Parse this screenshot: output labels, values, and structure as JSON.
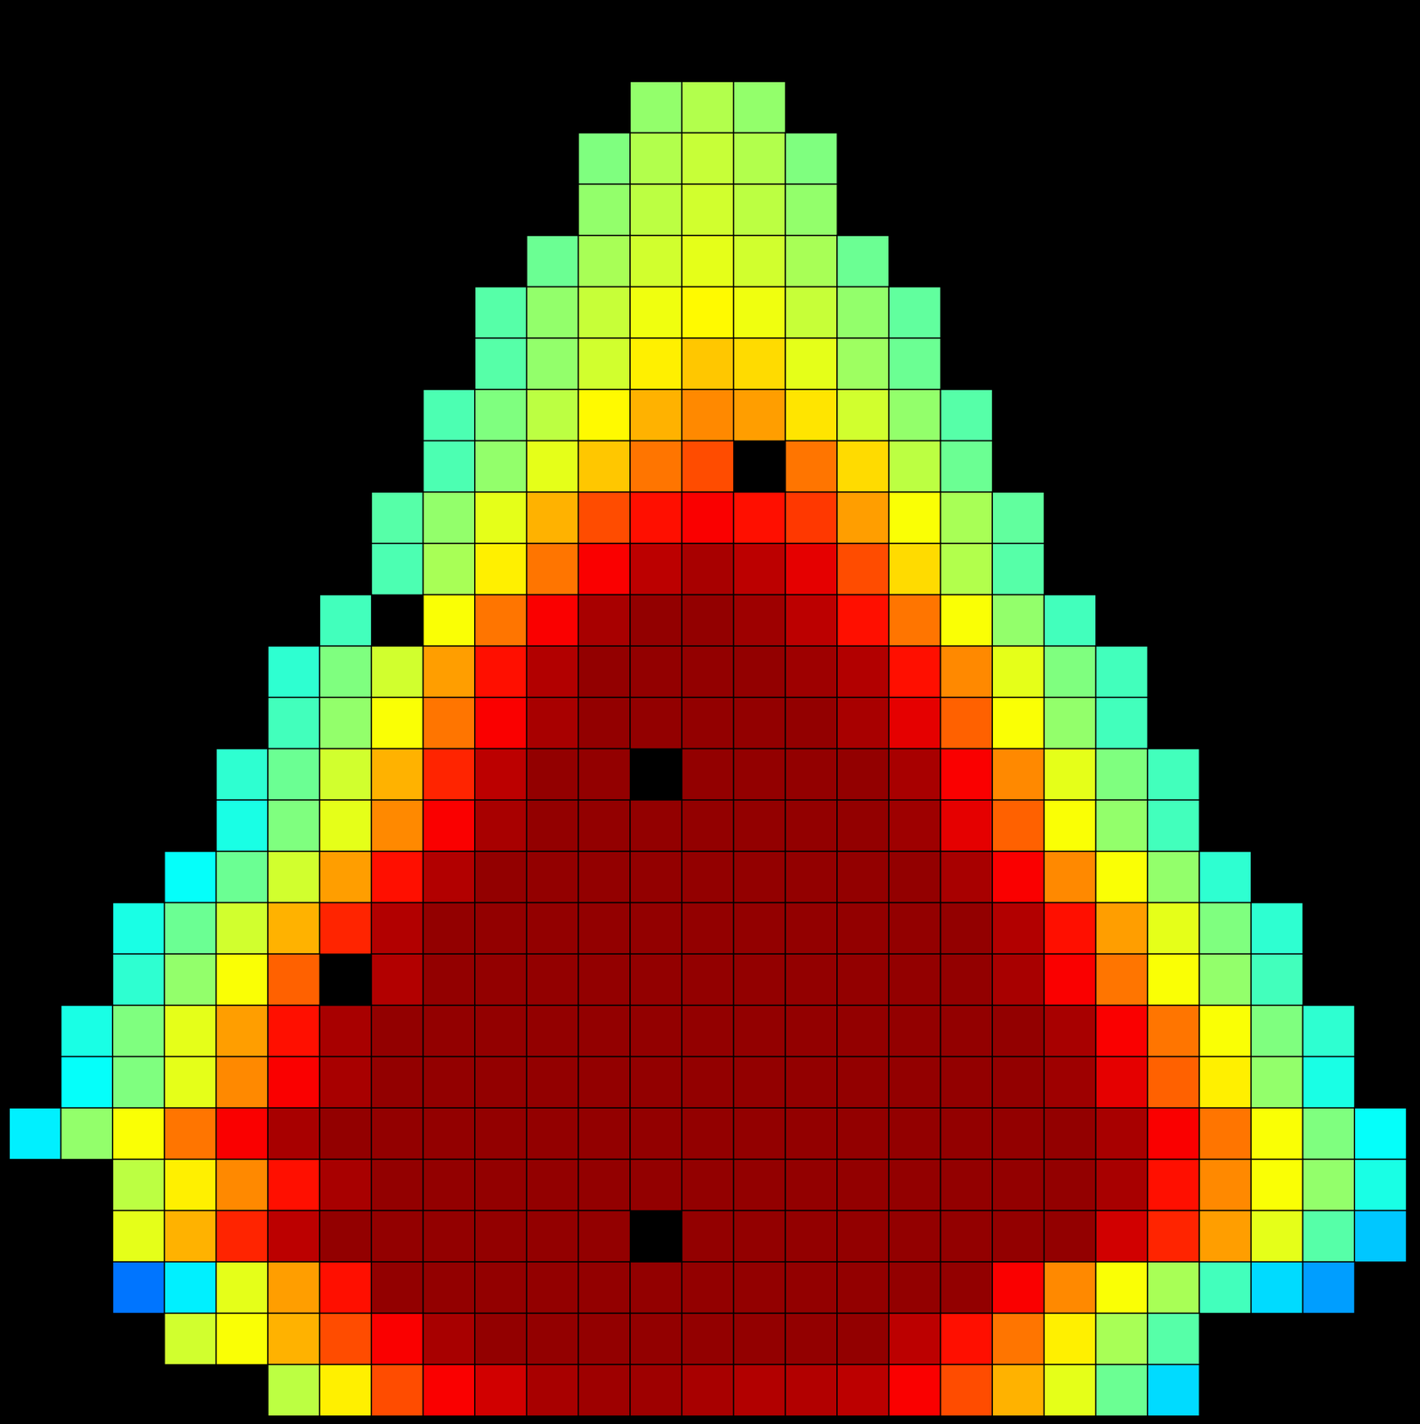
{
  "chart_data": {
    "type": "heatmap",
    "tick_labels": false,
    "grid": false,
    "color_range": [
      0,
      100
    ],
    "rows": [
      {
        "start": 12,
        "values": [
          52,
          55,
          52
        ]
      },
      {
        "start": 11,
        "values": [
          50,
          55,
          57,
          55,
          50
        ]
      },
      {
        "start": 11,
        "values": [
          52,
          56,
          58,
          56,
          52
        ]
      },
      {
        "start": 10,
        "values": [
          48,
          54,
          58,
          60,
          58,
          54,
          48
        ]
      },
      {
        "start": 9,
        "values": [
          46,
          52,
          57,
          61,
          63,
          61,
          57,
          52,
          47
        ]
      },
      {
        "start": 9,
        "values": [
          46,
          52,
          58,
          64,
          68,
          66,
          60,
          53,
          48
        ]
      },
      {
        "start": 8,
        "values": [
          45,
          50,
          56,
          63,
          70,
          74,
          72,
          65,
          58,
          52,
          46
        ]
      },
      {
        "start": 8,
        "values": [
          45,
          52,
          60,
          68,
          76,
          80,
          null,
          76,
          66,
          56,
          48
        ]
      },
      {
        "start": 7,
        "values": [
          46,
          52,
          60,
          70,
          80,
          86,
          88,
          86,
          82,
          72,
          62,
          54,
          47
        ]
      },
      {
        "start": 7,
        "values": [
          45,
          54,
          64,
          76,
          88,
          94,
          96,
          94,
          90,
          80,
          66,
          55,
          46
        ]
      },
      {
        "start": 6,
        "values": [
          44,
          null,
          62,
          76,
          88,
          96,
          98,
          98,
          97,
          94,
          86,
          76,
          62,
          52,
          44
        ]
      },
      {
        "start": 5,
        "values": [
          42,
          50,
          58,
          72,
          86,
          95,
          98,
          98,
          98,
          98,
          97,
          95,
          86,
          74,
          60,
          50,
          44
        ]
      },
      {
        "start": 5,
        "values": [
          44,
          52,
          62,
          76,
          88,
          96,
          98,
          98,
          98,
          98,
          98,
          96,
          90,
          78,
          62,
          52,
          44
        ]
      },
      {
        "start": 4,
        "values": [
          42,
          48,
          58,
          70,
          84,
          94,
          98,
          98,
          null,
          98,
          98,
          98,
          98,
          96,
          88,
          74,
          60,
          50,
          44
        ]
      },
      {
        "start": 4,
        "values": [
          40,
          50,
          60,
          74,
          88,
          96,
          98,
          98,
          98,
          98,
          98,
          98,
          98,
          97,
          90,
          78,
          62,
          52,
          44
        ]
      },
      {
        "start": 3,
        "values": [
          38,
          48,
          58,
          72,
          86,
          95,
          98,
          98,
          98,
          98,
          98,
          98,
          98,
          98,
          98,
          96,
          88,
          74,
          62,
          52,
          42
        ]
      },
      {
        "start": 2,
        "values": [
          40,
          48,
          58,
          70,
          84,
          95,
          98,
          98,
          98,
          98,
          98,
          98,
          98,
          98,
          98,
          98,
          98,
          95,
          86,
          72,
          60,
          50,
          42
        ]
      },
      {
        "start": 2,
        "values": [
          42,
          52,
          62,
          78,
          null,
          95,
          98,
          98,
          98,
          98,
          98,
          98,
          98,
          98,
          98,
          98,
          98,
          96,
          88,
          76,
          62,
          52,
          44
        ]
      },
      {
        "start": 1,
        "values": [
          40,
          50,
          60,
          72,
          86,
          96,
          98,
          98,
          98,
          98,
          98,
          98,
          98,
          98,
          98,
          98,
          98,
          98,
          98,
          96,
          88,
          76,
          62,
          50,
          42
        ]
      },
      {
        "start": 1,
        "values": [
          38,
          50,
          60,
          74,
          88,
          96,
          98,
          98,
          98,
          98,
          98,
          98,
          98,
          98,
          98,
          98,
          98,
          98,
          98,
          97,
          90,
          78,
          64,
          52,
          40
        ]
      },
      {
        "start": 0,
        "values": [
          36,
          52,
          62,
          76,
          88,
          96,
          98,
          98,
          98,
          98,
          98,
          98,
          98,
          98,
          98,
          98,
          98,
          98,
          98,
          98,
          98,
          96,
          88,
          76,
          62,
          50,
          38
        ]
      },
      {
        "start": 2,
        "values": [
          56,
          64,
          74,
          86,
          96,
          98,
          98,
          98,
          98,
          98,
          98,
          98,
          98,
          98,
          98,
          98,
          98,
          98,
          98,
          96,
          86,
          74,
          62,
          52,
          40
        ]
      },
      {
        "start": 2,
        "values": [
          60,
          70,
          84,
          94,
          98,
          98,
          98,
          98,
          98,
          98,
          null,
          98,
          98,
          98,
          98,
          98,
          98,
          98,
          98,
          92,
          84,
          72,
          60,
          46,
          32
        ]
      },
      {
        "start": 2,
        "values": [
          24,
          36,
          60,
          72,
          86,
          98,
          98,
          98,
          98,
          98,
          98,
          98,
          98,
          98,
          98,
          98,
          98,
          88,
          74,
          62,
          54,
          44,
          34,
          28
        ]
      },
      {
        "start": 3,
        "values": [
          58,
          62,
          70,
          80,
          88,
          96,
          98,
          98,
          98,
          98,
          98,
          98,
          98,
          98,
          94,
          86,
          76,
          64,
          54,
          46
        ]
      },
      {
        "start": 5,
        "values": [
          56,
          64,
          80,
          88,
          92,
          96,
          97,
          97,
          96,
          95,
          95,
          94,
          88,
          80,
          70,
          60,
          48,
          34
        ]
      }
    ]
  }
}
